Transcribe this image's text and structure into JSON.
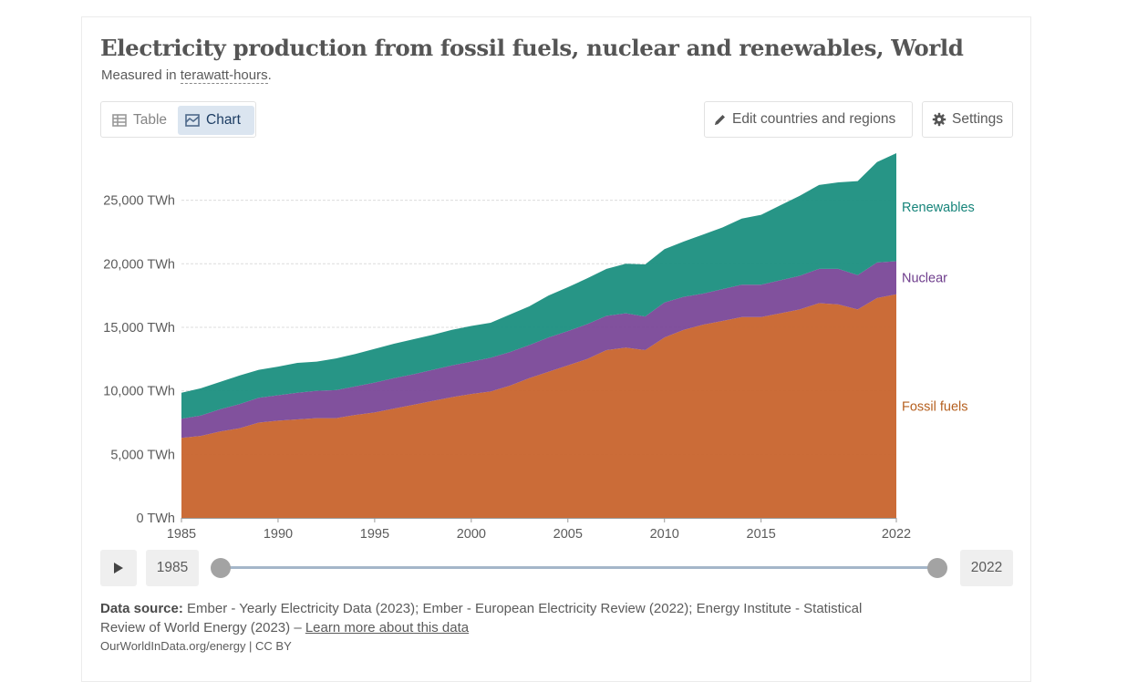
{
  "header": {
    "title": "Electricity production from fossil fuels, nuclear and renewables, World",
    "subtitle_prefix": "Measured in ",
    "subtitle_unit": "terawatt-hours",
    "subtitle_suffix": "."
  },
  "tabs": {
    "table": "Table",
    "chart": "Chart",
    "active": "chart"
  },
  "controls": {
    "edit": "Edit countries and regions",
    "settings": "Settings"
  },
  "timeline": {
    "start_year": "1985",
    "end_year": "2022"
  },
  "footer": {
    "source_label": "Data source:",
    "source_text": " Ember - Yearly Electricity Data (2023); Ember - European Electricity Review (2022); Energy Institute - Statistical Review of World Energy (2023) – ",
    "learn_more": "Learn more about this data",
    "credit": "OurWorldInData.org/energy | CC BY"
  },
  "colors": {
    "fossil": "#c8642d",
    "nuclear": "#7a4898",
    "renewables": "#1b8f80",
    "fossil_label": "#b55f1e",
    "nuclear_label": "#6e3d8c",
    "renewables_label": "#16847a"
  },
  "chart_data": {
    "type": "area",
    "stacked": true,
    "unit": "TWh",
    "x": [
      1985,
      1986,
      1987,
      1988,
      1989,
      1990,
      1991,
      1992,
      1993,
      1994,
      1995,
      1996,
      1997,
      1998,
      1999,
      2000,
      2001,
      2002,
      2003,
      2004,
      2005,
      2006,
      2007,
      2008,
      2009,
      2010,
      2011,
      2012,
      2013,
      2014,
      2015,
      2016,
      2017,
      2018,
      2019,
      2020,
      2021,
      2022
    ],
    "ylim": [
      0,
      28700
    ],
    "yticks": [
      0,
      5000,
      10000,
      15000,
      20000,
      25000
    ],
    "ytick_labels": [
      "0 TWh",
      "5,000 TWh",
      "10,000 TWh",
      "15,000 TWh",
      "20,000 TWh",
      "25,000 TWh"
    ],
    "xticks": [
      1985,
      1990,
      1995,
      2000,
      2005,
      2010,
      2015,
      2022
    ],
    "xtick_labels": [
      "1985",
      "1990",
      "1995",
      "2000",
      "2005",
      "2010",
      "2015",
      "2022"
    ],
    "grid": true,
    "legend": "inline-right",
    "series": [
      {
        "name": "Fossil fuels",
        "color_key": "fossil",
        "values": [
          6300,
          6450,
          6800,
          7050,
          7500,
          7650,
          7750,
          7850,
          7850,
          8100,
          8300,
          8600,
          8900,
          9200,
          9500,
          9750,
          9950,
          10400,
          11000,
          11500,
          12000,
          12500,
          13200,
          13400,
          13200,
          14200,
          14800,
          15200,
          15500,
          15800,
          15800,
          16100,
          16400,
          16900,
          16800,
          16400,
          17300,
          17600
        ]
      },
      {
        "name": "Nuclear",
        "color_key": "nuclear",
        "values": [
          1500,
          1600,
          1750,
          1900,
          1950,
          2000,
          2100,
          2150,
          2200,
          2250,
          2350,
          2400,
          2400,
          2450,
          2500,
          2550,
          2650,
          2650,
          2600,
          2700,
          2700,
          2750,
          2700,
          2700,
          2650,
          2750,
          2600,
          2450,
          2500,
          2550,
          2550,
          2600,
          2650,
          2700,
          2800,
          2700,
          2800,
          2600
        ]
      },
      {
        "name": "Renewables",
        "color_key": "renewables",
        "values": [
          2050,
          2150,
          2150,
          2250,
          2200,
          2250,
          2350,
          2300,
          2500,
          2550,
          2650,
          2700,
          2750,
          2750,
          2800,
          2800,
          2750,
          2950,
          3050,
          3300,
          3450,
          3600,
          3700,
          3900,
          4100,
          4200,
          4350,
          4650,
          4850,
          5200,
          5500,
          5900,
          6300,
          6600,
          6800,
          7400,
          7900,
          8500
        ]
      }
    ]
  }
}
